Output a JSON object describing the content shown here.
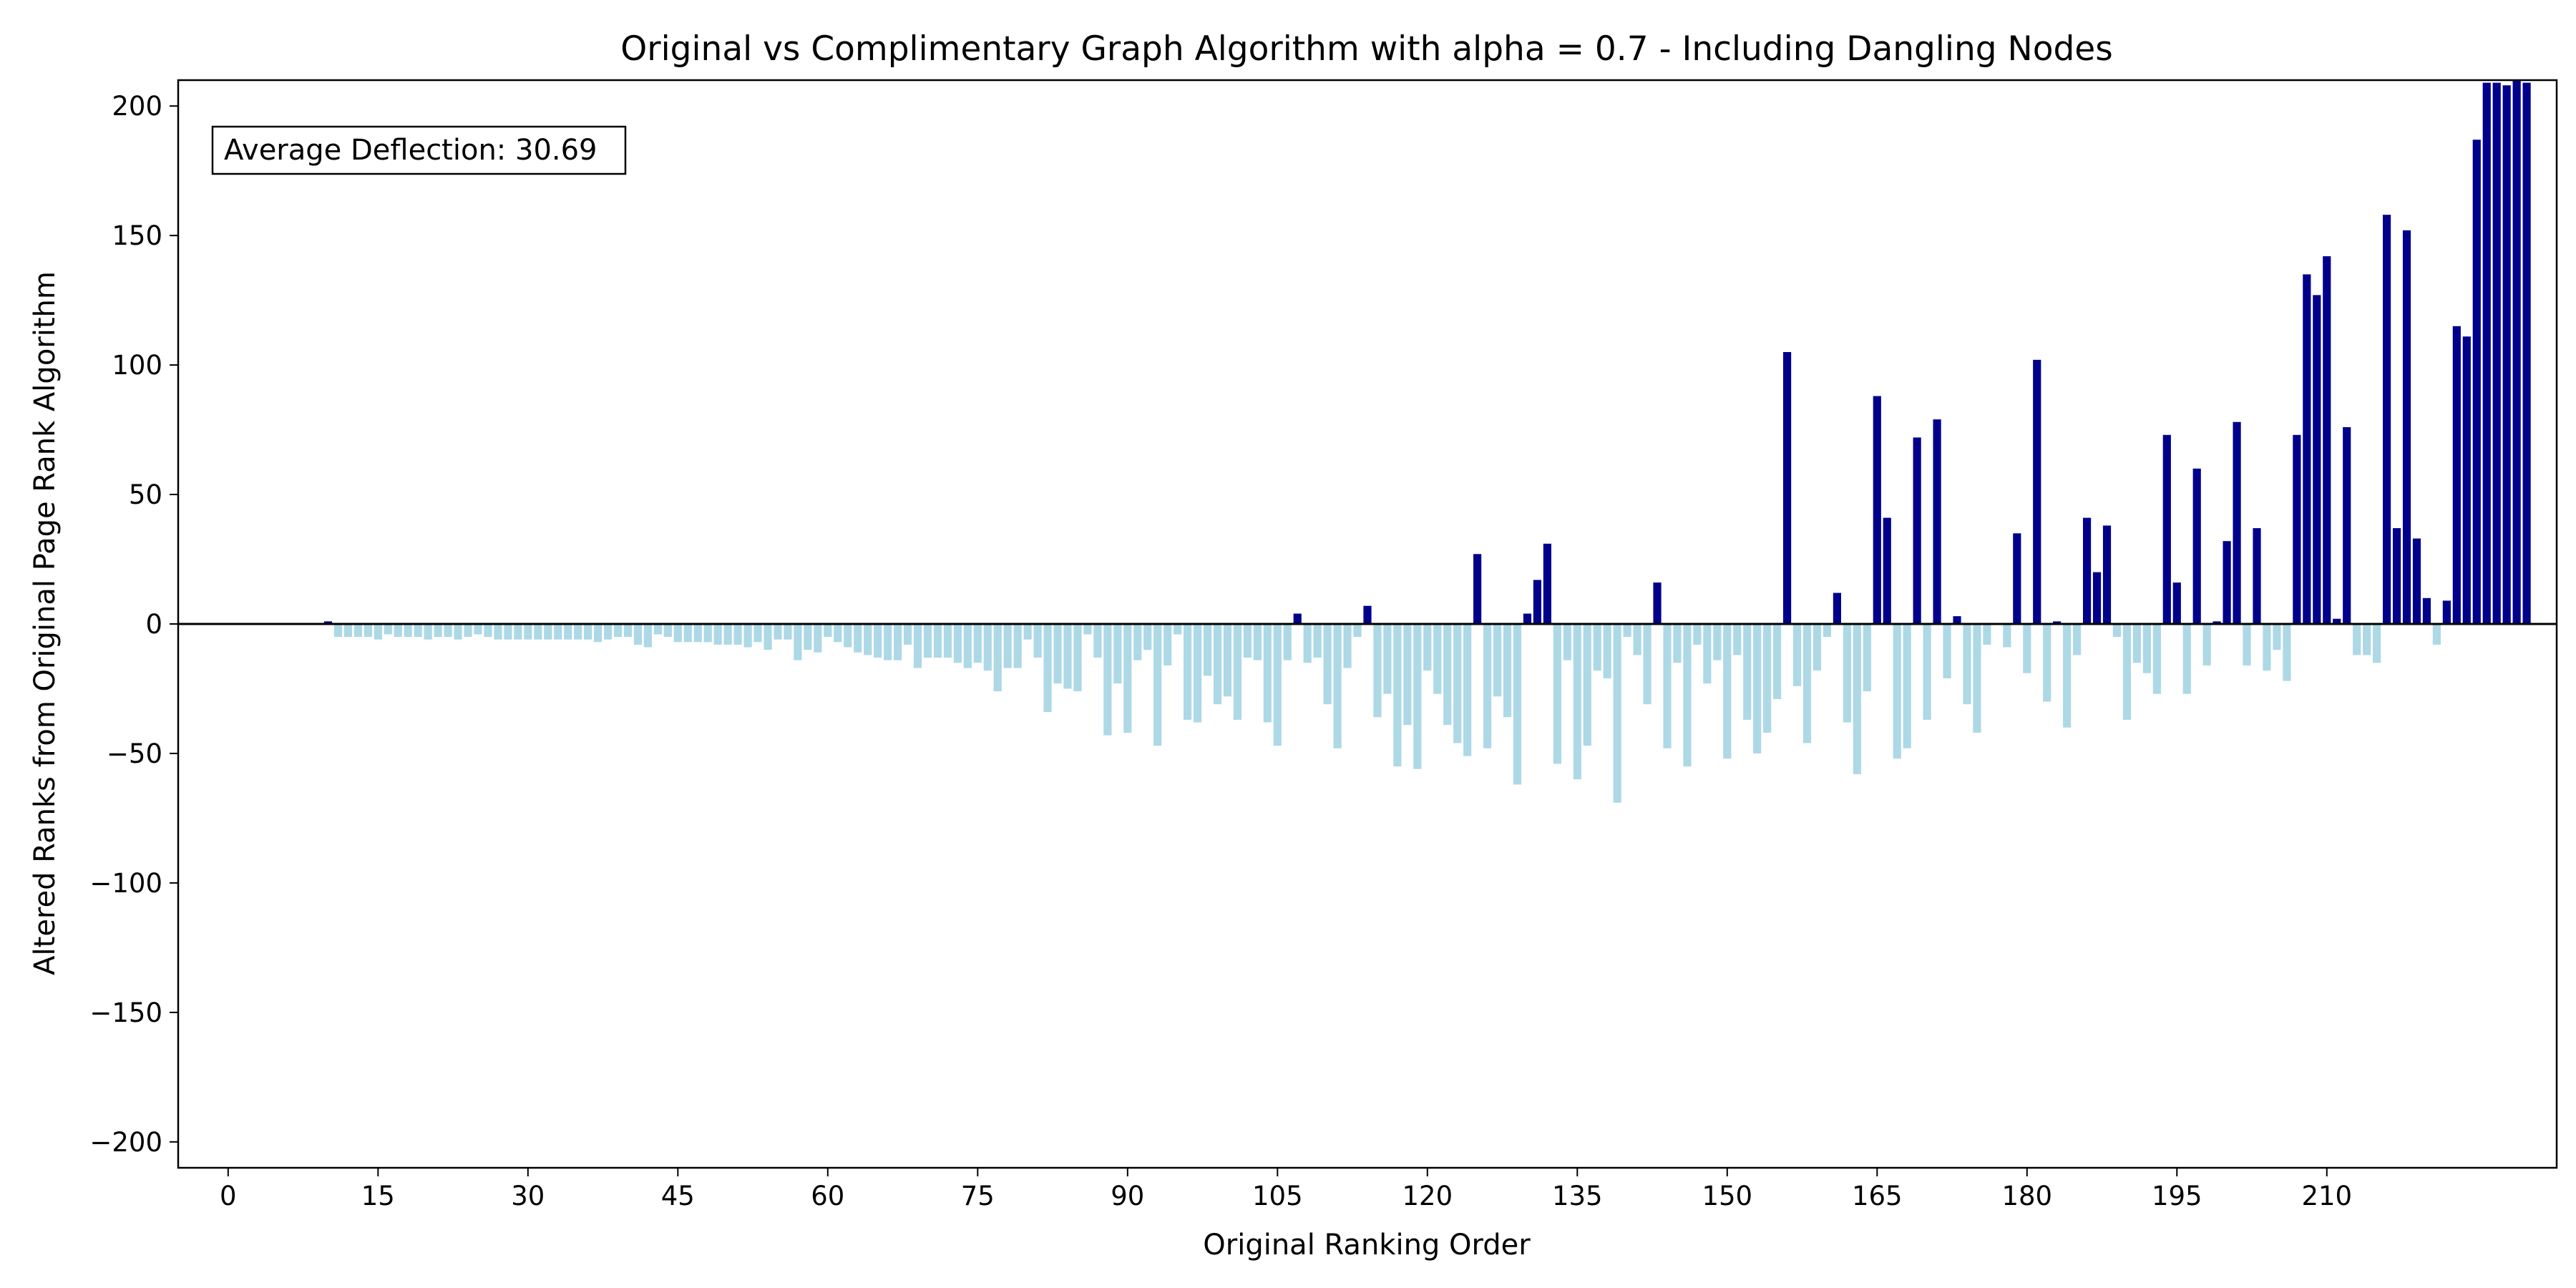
{
  "chart_data": {
    "type": "bar",
    "title": "Original vs Complimentary Graph Algorithm with alpha = 0.7 - Including Dangling Nodes",
    "xlabel": "Original Ranking Order",
    "ylabel": "Altered Ranks from Original Page Rank Algorithm",
    "xlim": [
      -5,
      233
    ],
    "ylim": [
      -210,
      210
    ],
    "xticks": [
      0,
      15,
      30,
      45,
      60,
      75,
      90,
      105,
      120,
      135,
      150,
      165,
      180,
      195,
      210
    ],
    "yticks": [
      -200,
      -150,
      -100,
      -50,
      0,
      50,
      100,
      150,
      200
    ],
    "x_start": 0,
    "colors": {
      "positive": "#00008B",
      "negative": "#ADD8E6",
      "zero_line": "#000000"
    },
    "annotation": "Average Deflection: 30.69",
    "values": [
      0,
      0,
      0,
      0,
      0,
      0,
      0,
      0,
      0,
      0,
      1,
      -5,
      -5,
      -5,
      -5,
      -6,
      -4,
      -5,
      -5,
      -5,
      -6,
      -5,
      -5,
      -6,
      -5,
      -4,
      -5,
      -6,
      -6,
      -6,
      -6,
      -6,
      -6,
      -6,
      -6,
      -6,
      -6,
      -7,
      -6,
      -5,
      -5,
      -8,
      -9,
      -4,
      -5,
      -7,
      -7,
      -7,
      -7,
      -8,
      -8,
      -8,
      -9,
      -7,
      -10,
      -6,
      -6,
      -14,
      -10,
      -11,
      -5,
      -7,
      -9,
      -11,
      -12,
      -13,
      -14,
      -14,
      -8,
      -17,
      -13,
      -13,
      -13,
      -15,
      -17,
      -15,
      -18,
      -26,
      -17,
      -17,
      -6,
      -13,
      -34,
      -23,
      -25,
      -26,
      -4,
      -13,
      -43,
      -23,
      -42,
      -14,
      -10,
      -47,
      -16,
      -4,
      -37,
      -38,
      -20,
      -31,
      -28,
      -37,
      -13,
      -14,
      -38,
      -47,
      -14,
      4,
      -15,
      -13,
      -31,
      -48,
      -17,
      -5,
      7,
      -36,
      -27,
      -55,
      -39,
      -56,
      -18,
      -27,
      -39,
      -46,
      -51,
      27,
      -48,
      -28,
      -36,
      -62,
      4,
      17,
      31,
      -54,
      -14,
      -60,
      -47,
      -18,
      -21,
      -69,
      -5,
      -12,
      -31,
      16,
      -48,
      -15,
      -55,
      -8,
      -23,
      -14,
      -52,
      -12,
      -37,
      -50,
      -42,
      -29,
      105,
      -24,
      -46,
      -18,
      -5,
      12,
      -38,
      -58,
      -26,
      88,
      41,
      -52,
      -48,
      72,
      -37,
      79,
      -21,
      3,
      -31,
      -42,
      -8,
      0,
      -9,
      35,
      -19,
      102,
      -30,
      1,
      -40,
      -12,
      41,
      20,
      38,
      -5,
      -37,
      -15,
      -19,
      -27,
      73,
      16,
      -27,
      60,
      -16,
      1,
      32,
      78,
      -16,
      37,
      -18,
      -10,
      -22,
      73,
      135,
      127,
      142,
      2,
      76,
      -12,
      -12,
      -15,
      158,
      37,
      152,
      33,
      10,
      -8,
      9,
      115,
      111,
      187,
      209,
      209,
      208,
      210,
      209
    ]
  }
}
